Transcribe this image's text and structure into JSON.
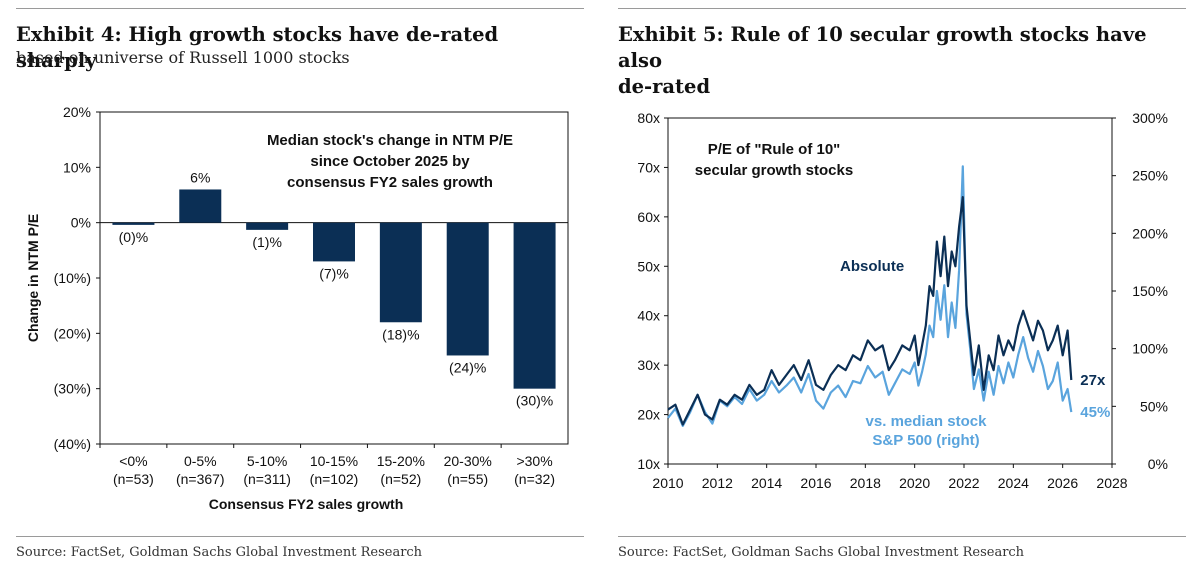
{
  "left": {
    "title": "Exhibit 4: High growth stocks have de-rated sharply",
    "subtitle": "based on universe of Russell 1000 stocks",
    "source": "Source: FactSet, Goldman Sachs Global Investment Research"
  },
  "right": {
    "title_line1": "Exhibit 5: Rule of 10 secular growth stocks have also",
    "title_line2": "de-rated",
    "source": "Source: FactSet, Goldman Sachs Global Investment Research"
  },
  "colors": {
    "navy": "#0b2f55",
    "light_blue": "#5aa4dd",
    "bar": "#0b2f55"
  },
  "chart_data": [
    {
      "type": "bar",
      "annotation": [
        "Median stock's change in NTM P/E",
        "since October 2025 by",
        "consensus FY2 sales growth"
      ],
      "categories": [
        "<0%",
        "0-5%",
        "5-10%",
        "10-15%",
        "15-20%",
        "20-30%",
        ">30%"
      ],
      "counts": [
        "(n=53)",
        "(n=367)",
        "(n=311)",
        "(n=102)",
        "(n=52)",
        "(n=55)",
        "(n=32)"
      ],
      "values": [
        -0.4,
        6,
        -1.3,
        -7,
        -18,
        -24,
        -30
      ],
      "value_labels": [
        "(0)%",
        "6%",
        "(1)%",
        "(7)%",
        "(18)%",
        "(24)%",
        "(30)%"
      ],
      "xlabel": "Consensus FY2 sales growth",
      "ylabel": "Change in NTM P/E",
      "ylim": [
        -40,
        20
      ],
      "yticks": [
        20,
        10,
        0,
        -10,
        -20,
        -30,
        -40
      ],
      "ytick_labels": [
        "20%",
        "10%",
        "0%",
        "(10%)",
        "(20%)",
        "(30%)",
        "(40%)"
      ],
      "grid": false
    },
    {
      "type": "line",
      "annotation": [
        "P/E of \"Rule of 10\"",
        "secular growth stocks"
      ],
      "xlim": [
        2010,
        2028
      ],
      "xticks": [
        2010,
        2012,
        2014,
        2016,
        2018,
        2020,
        2022,
        2024,
        2026,
        2028
      ],
      "ylim_left": [
        10,
        80
      ],
      "yticks_left": [
        "80x",
        "70x",
        "60x",
        "50x",
        "40x",
        "30x",
        "20x",
        "10x"
      ],
      "ylim_right": [
        0,
        300
      ],
      "yticks_right": [
        "300%",
        "250%",
        "200%",
        "150%",
        "100%",
        "50%",
        "0%"
      ],
      "grid": false,
      "series": [
        {
          "name": "Absolute",
          "axis": "left",
          "end_label": "27x",
          "x": [
            2010.0,
            2010.3,
            2010.6,
            2010.9,
            2011.2,
            2011.5,
            2011.8,
            2012.1,
            2012.4,
            2012.7,
            2013.0,
            2013.3,
            2013.6,
            2013.9,
            2014.2,
            2014.5,
            2014.8,
            2015.1,
            2015.4,
            2015.7,
            2016.0,
            2016.3,
            2016.6,
            2016.9,
            2017.2,
            2017.5,
            2017.8,
            2018.1,
            2018.4,
            2018.7,
            2018.95,
            2019.2,
            2019.5,
            2019.8,
            2020.0,
            2020.15,
            2020.3,
            2020.45,
            2020.6,
            2020.75,
            2020.9,
            2021.05,
            2021.2,
            2021.35,
            2021.5,
            2021.65,
            2021.8,
            2021.95,
            2022.1,
            2022.25,
            2022.4,
            2022.6,
            2022.8,
            2023.0,
            2023.2,
            2023.4,
            2023.6,
            2023.8,
            2024.0,
            2024.2,
            2024.4,
            2024.6,
            2024.8,
            2025.0,
            2025.2,
            2025.4,
            2025.6,
            2025.8,
            2026.0,
            2026.2,
            2026.35
          ],
          "y": [
            21,
            22,
            18,
            21,
            24,
            20,
            19,
            23,
            22,
            24,
            23,
            26,
            24,
            25,
            29,
            26,
            28,
            30,
            27,
            31,
            26,
            25,
            28,
            30,
            29,
            32,
            31,
            35,
            33,
            34,
            29,
            31,
            34,
            33,
            36,
            30,
            34,
            38,
            46,
            44,
            55,
            48,
            56,
            46,
            53,
            50,
            58,
            64,
            42,
            35,
            28,
            34,
            25,
            32,
            29,
            36,
            32,
            35,
            33,
            38,
            41,
            38,
            35,
            39,
            37,
            33,
            35,
            38,
            32,
            37,
            27
          ]
        },
        {
          "name": "vs. median stock S&P 500 (right)",
          "axis": "right",
          "end_label": "45%",
          "x": [
            2010.0,
            2010.3,
            2010.6,
            2010.9,
            2011.2,
            2011.5,
            2011.8,
            2012.1,
            2012.4,
            2012.7,
            2013.0,
            2013.3,
            2013.6,
            2013.9,
            2014.2,
            2014.5,
            2014.8,
            2015.1,
            2015.4,
            2015.7,
            2016.0,
            2016.3,
            2016.6,
            2016.9,
            2017.2,
            2017.5,
            2017.8,
            2018.1,
            2018.4,
            2018.7,
            2018.95,
            2019.2,
            2019.5,
            2019.8,
            2020.0,
            2020.15,
            2020.3,
            2020.45,
            2020.6,
            2020.75,
            2020.9,
            2021.05,
            2021.2,
            2021.35,
            2021.5,
            2021.65,
            2021.8,
            2021.95,
            2022.1,
            2022.25,
            2022.4,
            2022.6,
            2022.8,
            2023.0,
            2023.2,
            2023.4,
            2023.6,
            2023.8,
            2024.0,
            2024.2,
            2024.4,
            2024.6,
            2024.8,
            2025.0,
            2025.2,
            2025.4,
            2025.6,
            2025.8,
            2026.0,
            2026.2,
            2026.35
          ],
          "y": [
            40,
            48,
            33,
            45,
            60,
            45,
            35,
            55,
            50,
            58,
            52,
            65,
            55,
            60,
            72,
            62,
            68,
            75,
            62,
            78,
            55,
            48,
            62,
            68,
            58,
            72,
            70,
            85,
            75,
            80,
            60,
            70,
            82,
            78,
            88,
            68,
            80,
            95,
            120,
            110,
            150,
            125,
            155,
            110,
            140,
            118,
            168,
            258,
            130,
            100,
            65,
            82,
            55,
            80,
            60,
            85,
            70,
            88,
            75,
            95,
            110,
            92,
            80,
            98,
            85,
            65,
            72,
            88,
            55,
            65,
            45
          ]
        }
      ]
    }
  ]
}
